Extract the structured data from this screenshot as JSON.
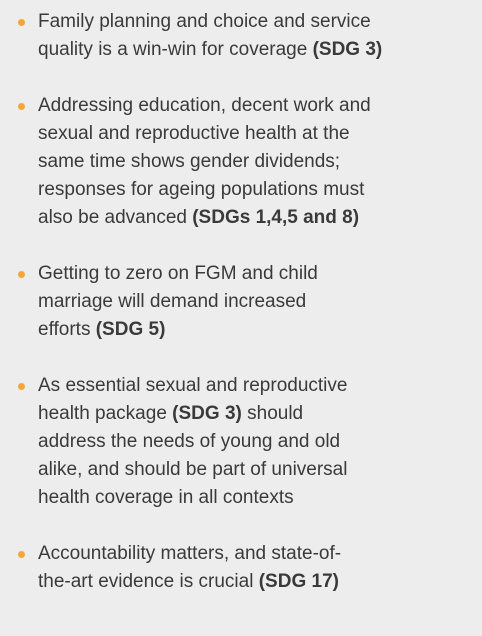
{
  "items": [
    [
      [
        {
          "text": "Family planning and choice and service",
          "bold": false
        }
      ],
      [
        {
          "text": "quality is a win-win for coverage ",
          "bold": false
        },
        {
          "text": "(SDG 3)",
          "bold": true
        }
      ]
    ],
    [
      [
        {
          "text": "Addressing education, decent work and",
          "bold": false
        }
      ],
      [
        {
          "text": "sexual and reproductive health at the",
          "bold": false
        }
      ],
      [
        {
          "text": "same time shows gender dividends;",
          "bold": false
        }
      ],
      [
        {
          "text": "responses for ageing populations must",
          "bold": false
        }
      ],
      [
        {
          "text": "also be advanced ",
          "bold": false
        },
        {
          "text": "(SDGs 1,4,5 and 8)",
          "bold": true
        }
      ]
    ],
    [
      [
        {
          "text": "Getting to zero on FGM and child",
          "bold": false
        }
      ],
      [
        {
          "text": "marriage will demand increased",
          "bold": false
        }
      ],
      [
        {
          "text": "efforts ",
          "bold": false
        },
        {
          "text": "(SDG 5)",
          "bold": true
        }
      ]
    ],
    [
      [
        {
          "text": "As essential sexual and reproductive",
          "bold": false
        }
      ],
      [
        {
          "text": "health package ",
          "bold": false
        },
        {
          "text": "(SDG 3)",
          "bold": true
        },
        {
          "text": " should",
          "bold": false
        }
      ],
      [
        {
          "text": "address the needs of young and old",
          "bold": false
        }
      ],
      [
        {
          "text": "alike, and should be part of universal",
          "bold": false
        }
      ],
      [
        {
          "text": "health coverage in all contexts",
          "bold": false
        }
      ]
    ],
    [
      [
        {
          "text": "Accountability matters, and state-of-",
          "bold": false
        }
      ],
      [
        {
          "text": "the-art evidence is crucial ",
          "bold": false
        },
        {
          "text": "(SDG 17)",
          "bold": true
        }
      ]
    ]
  ]
}
